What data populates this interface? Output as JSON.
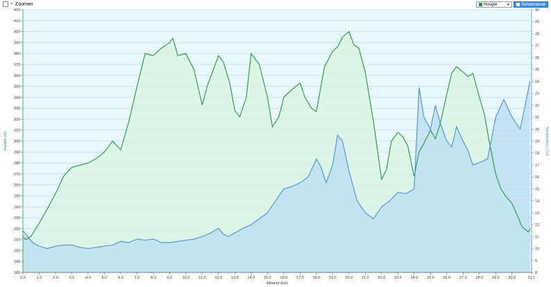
{
  "toolbar": {
    "zoom_label": "Zoomen",
    "series_select_left": "Hoogte",
    "series_select_right": "Temperatuur"
  },
  "colors": {
    "elevation": "#1e9a3a",
    "elevation_fill": "#d9f5e2",
    "temperature": "#4a90d9",
    "temperature_fill": "#b9dcf2",
    "plot_bg": "#e8f8fc",
    "grid": "#9fd0e2"
  },
  "chart_data": {
    "type": "area",
    "xlabel": "Afstand  (km)",
    "ylabel_left": "Hoogte (m)",
    "ylabel_right": "Temperatuur (°C)",
    "xlim": [
      0,
      31.2
    ],
    "ylim_left": [
      180,
      420
    ],
    "ylim_right": [
      8,
      30
    ],
    "x_ticks": [
      "0.0",
      "1.0",
      "2.0",
      "3.0",
      "4.0",
      "5.0",
      "6.0",
      "7.0",
      "8.0",
      "9.0",
      "10.0",
      "11.0",
      "12.0",
      "13.0",
      "14.0",
      "15.0",
      "16.0",
      "17.0",
      "18.0",
      "19.0",
      "20.0",
      "21.0",
      "22.0",
      "23.0",
      "24.0",
      "25.0",
      "26.0",
      "27.0",
      "28.0",
      "29.0",
      "30.0",
      "31.1"
    ],
    "y_ticks_left": [
      "180",
      "190",
      "200",
      "210",
      "220",
      "230",
      "240",
      "250",
      "260",
      "270",
      "280",
      "290",
      "300",
      "310",
      "320",
      "330",
      "340",
      "350",
      "360",
      "370",
      "380",
      "390",
      "400",
      "410",
      "420"
    ],
    "y_ticks_right": [
      "8",
      "9",
      "10",
      "11",
      "12",
      "13",
      "14",
      "15",
      "16",
      "17",
      "18",
      "19",
      "20",
      "21",
      "22",
      "23",
      "24",
      "25",
      "26",
      "27",
      "28",
      "29",
      "30"
    ],
    "grid": true,
    "legend": "none",
    "series": [
      {
        "name": "Hoogte",
        "axis": "left",
        "x": [
          0,
          0.2,
          0.5,
          1.0,
          1.5,
          2.0,
          2.5,
          3.0,
          3.5,
          4.0,
          4.5,
          5.0,
          5.5,
          6.0,
          6.5,
          7.0,
          7.5,
          8.0,
          8.5,
          9.0,
          9.2,
          9.5,
          10.0,
          10.5,
          11.0,
          11.3,
          11.7,
          12.0,
          12.3,
          12.7,
          13.0,
          13.3,
          13.7,
          14.0,
          14.5,
          15.0,
          15.3,
          15.7,
          16.0,
          16.5,
          17.0,
          17.3,
          17.7,
          18.0,
          18.5,
          19.0,
          19.3,
          19.6,
          20.0,
          20.3,
          20.6,
          21.0,
          21.5,
          22.0,
          22.3,
          22.6,
          23.0,
          23.3,
          23.6,
          24.0,
          24.3,
          24.6,
          25.0,
          25.3,
          25.6,
          26.0,
          26.3,
          26.6,
          27.0,
          27.3,
          27.6,
          28.0,
          28.3,
          28.6,
          29.0,
          29.3,
          29.6,
          30.0,
          30.3,
          30.6,
          31.0,
          31.1
        ],
        "values": [
          212,
          210,
          213,
          225,
          238,
          252,
          268,
          276,
          278,
          280,
          284,
          290,
          300,
          292,
          318,
          350,
          380,
          378,
          385,
          390,
          394,
          378,
          380,
          365,
          333,
          350,
          366,
          378,
          372,
          352,
          328,
          322,
          340,
          380,
          370,
          340,
          313,
          322,
          340,
          347,
          353,
          340,
          330,
          327,
          368,
          382,
          386,
          395,
          400,
          388,
          385,
          363,
          318,
          265,
          274,
          300,
          308,
          304,
          296,
          268,
          290,
          298,
          310,
          302,
          316,
          343,
          362,
          368,
          363,
          359,
          362,
          340,
          325,
          300,
          270,
          257,
          250,
          243,
          233,
          222,
          217,
          220
        ]
      },
      {
        "name": "Temperatuur",
        "axis": "right",
        "x": [
          0,
          0.3,
          0.6,
          1.0,
          1.5,
          2.0,
          2.5,
          3.0,
          3.5,
          4.0,
          4.5,
          5.0,
          5.5,
          6.0,
          6.5,
          7.0,
          7.5,
          8.0,
          8.5,
          9.0,
          9.5,
          10.0,
          10.5,
          11.0,
          11.5,
          12.0,
          12.3,
          12.6,
          13.0,
          13.5,
          14.0,
          14.5,
          15.0,
          15.5,
          16.0,
          16.5,
          17.0,
          17.5,
          18.0,
          18.3,
          18.6,
          19.0,
          19.3,
          19.6,
          20.0,
          20.5,
          21.0,
          21.5,
          22.0,
          22.5,
          23.0,
          23.5,
          24.0,
          24.3,
          24.6,
          25.0,
          25.3,
          25.6,
          26.0,
          26.3,
          26.6,
          27.0,
          27.3,
          27.6,
          28.0,
          28.5,
          29.0,
          29.5,
          30.0,
          30.5,
          31.0,
          31.1
        ],
        "values": [
          11.5,
          11.0,
          10.5,
          10.2,
          10.0,
          10.2,
          10.3,
          10.3,
          10.1,
          10.0,
          10.1,
          10.2,
          10.3,
          10.6,
          10.5,
          10.8,
          10.7,
          10.8,
          10.5,
          10.5,
          10.6,
          10.7,
          10.8,
          11.0,
          11.3,
          11.7,
          11.2,
          11.0,
          11.3,
          11.7,
          12.0,
          12.5,
          13.0,
          14.0,
          15.0,
          15.2,
          15.5,
          16.0,
          17.5,
          16.8,
          15.5,
          17.0,
          19.5,
          19.0,
          16.5,
          14.0,
          13.0,
          12.5,
          13.5,
          14.0,
          14.7,
          14.6,
          15.0,
          23.5,
          21.0,
          20.0,
          22.0,
          20.5,
          19.0,
          18.5,
          20.2,
          19.0,
          18.2,
          17.0,
          17.2,
          17.5,
          21.0,
          22.5,
          21.0,
          20.0,
          23.3,
          24.0
        ]
      }
    ]
  }
}
